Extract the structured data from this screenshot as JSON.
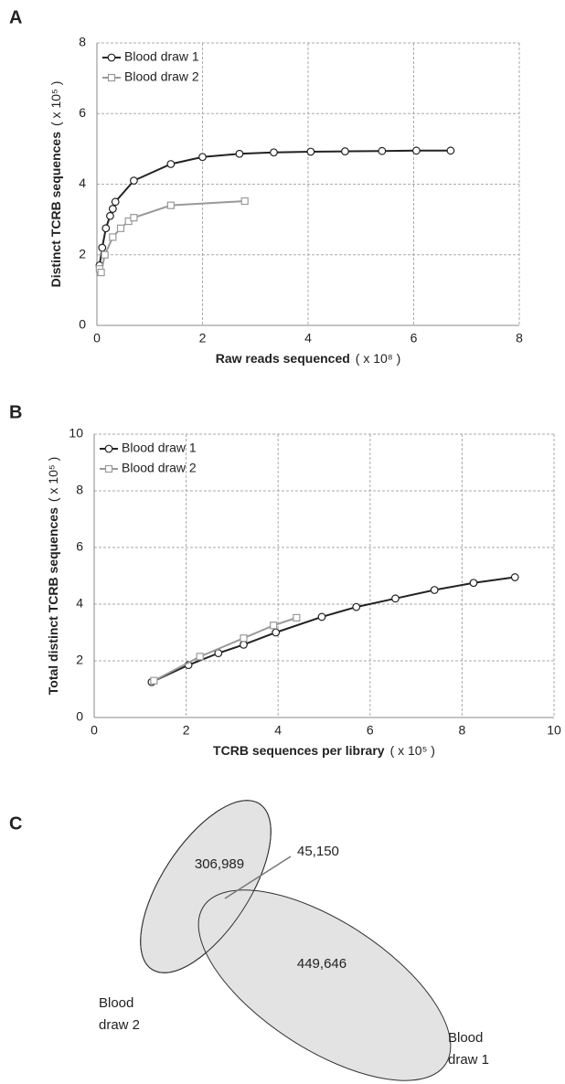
{
  "chart_data": [
    {
      "type": "line",
      "panel": "A",
      "xlabel": "Raw reads sequenced",
      "xlabel_unit": "( x 10⁸ )",
      "ylabel": "Distinct TCRB sequences",
      "ylabel_unit": "( x 10⁵ )",
      "xlim": [
        0,
        8
      ],
      "ylim": [
        0,
        8
      ],
      "xticks": [
        0,
        2,
        4,
        6,
        8
      ],
      "yticks": [
        0,
        2,
        4,
        6,
        8
      ],
      "grid": true,
      "legend": "top-left",
      "series": [
        {
          "name": "Blood draw 1",
          "color": "#222222",
          "marker": "circle",
          "x": [
            0.05,
            0.1,
            0.17,
            0.25,
            0.3,
            0.35,
            0.7,
            1.4,
            2.0,
            2.7,
            3.35,
            4.05,
            4.7,
            5.4,
            6.05,
            6.7
          ],
          "values": [
            1.7,
            2.2,
            2.75,
            3.1,
            3.3,
            3.5,
            4.1,
            4.57,
            4.77,
            4.86,
            4.9,
            4.92,
            4.93,
            4.94,
            4.95,
            4.95
          ]
        },
        {
          "name": "Blood draw 2",
          "color": "#999999",
          "marker": "square",
          "x": [
            0.05,
            0.08,
            0.15,
            0.3,
            0.45,
            0.6,
            0.7,
            1.4,
            2.8
          ],
          "values": [
            1.6,
            1.5,
            2.0,
            2.5,
            2.75,
            2.95,
            3.05,
            3.4,
            3.52
          ]
        }
      ]
    },
    {
      "type": "line",
      "panel": "B",
      "xlabel": "TCRB sequences per library",
      "xlabel_unit": "( x 10⁵ )",
      "ylabel": "Total distinct TCRB sequences",
      "ylabel_unit": "( x 10⁵ )",
      "xlim": [
        0,
        10
      ],
      "ylim": [
        0,
        10
      ],
      "xticks": [
        0,
        2,
        4,
        6,
        8,
        10
      ],
      "yticks": [
        0,
        2,
        4,
        6,
        8,
        10
      ],
      "grid": true,
      "legend": "top-left",
      "series": [
        {
          "name": "Blood draw 1",
          "color": "#222222",
          "marker": "circle",
          "x": [
            1.25,
            2.05,
            2.7,
            3.25,
            3.95,
            4.95,
            5.7,
            6.55,
            7.4,
            8.25,
            9.15
          ],
          "values": [
            1.25,
            1.85,
            2.27,
            2.57,
            3.0,
            3.55,
            3.9,
            4.2,
            4.5,
            4.75,
            4.95
          ]
        },
        {
          "name": "Blood draw 2",
          "color": "#999999",
          "marker": "square",
          "x": [
            1.3,
            2.3,
            3.25,
            3.9,
            4.4
          ],
          "values": [
            1.3,
            2.15,
            2.8,
            3.25,
            3.52
          ]
        }
      ]
    }
  ],
  "venn": {
    "panel": "C",
    "sets": [
      {
        "label": [
          "Blood",
          "draw 2"
        ],
        "count": "306,989"
      },
      {
        "label": [
          "Blood",
          "draw 1"
        ],
        "count": "449,646"
      }
    ],
    "overlap": "45,150"
  }
}
